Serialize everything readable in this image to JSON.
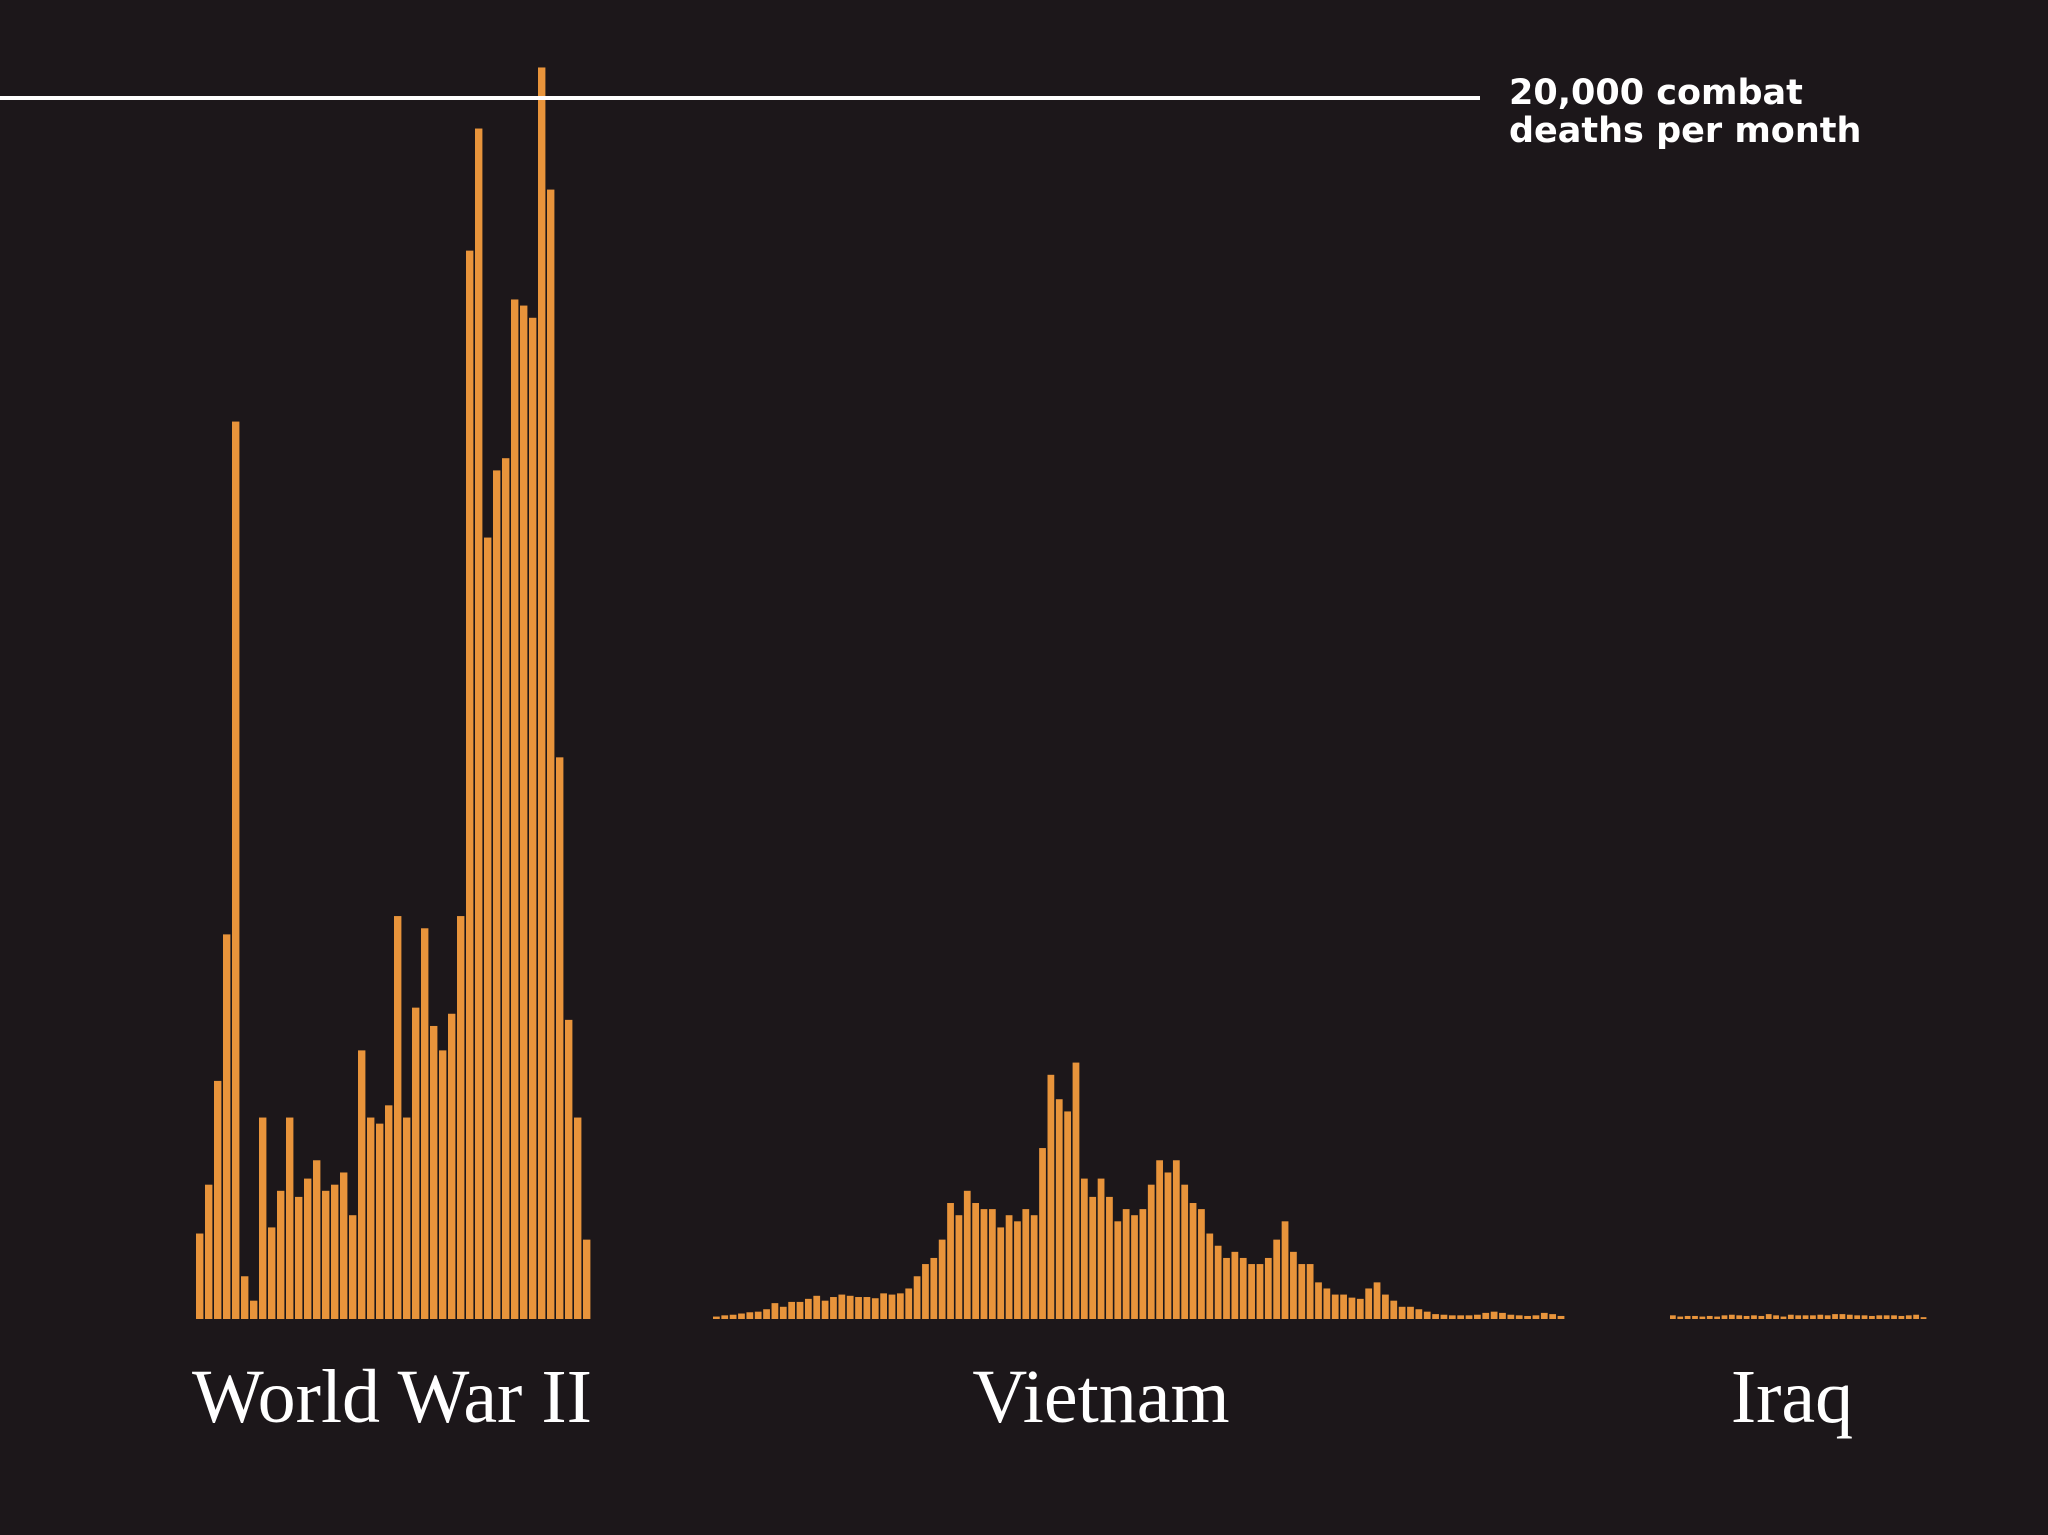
{
  "colors": {
    "background": "#1c171a",
    "bar": "#e8943b",
    "reference_line": "#ffffff",
    "text": "#ffffff"
  },
  "chart_data": {
    "type": "bar",
    "title": "",
    "xlabel": "",
    "ylabel": "",
    "ylim": [
      0,
      21000
    ],
    "grid": false,
    "reference_line": {
      "value": 20000,
      "label_line1": "20,000 combat",
      "label_line2": "deaths per month"
    },
    "groups": [
      {
        "label": "World War II",
        "values": [
          1400,
          2200,
          3900,
          6300,
          14700,
          700,
          300,
          3300,
          1500,
          2100,
          3300,
          2000,
          2300,
          2600,
          2100,
          2200,
          2400,
          1700,
          4400,
          3300,
          3200,
          3500,
          6600,
          3300,
          5100,
          6400,
          4800,
          4400,
          5000,
          6600,
          17500,
          19500,
          12800,
          13900,
          14100,
          16700,
          16600,
          16400,
          20500,
          18500,
          9200,
          4900,
          3300,
          1300
        ]
      },
      {
        "label": "Vietnam",
        "values": [
          40,
          60,
          70,
          90,
          110,
          120,
          160,
          260,
          200,
          280,
          280,
          330,
          380,
          300,
          360,
          400,
          380,
          360,
          360,
          340,
          420,
          400,
          420,
          500,
          700,
          900,
          1000,
          1300,
          1900,
          1700,
          2100,
          1900,
          1800,
          1800,
          1500,
          1700,
          1600,
          1800,
          1700,
          2800,
          4000,
          3600,
          3400,
          4200,
          2300,
          2000,
          2300,
          2000,
          1600,
          1800,
          1700,
          1800,
          2200,
          2600,
          2400,
          2600,
          2200,
          1900,
          1800,
          1400,
          1200,
          1000,
          1100,
          1000,
          900,
          900,
          1000,
          1300,
          1600,
          1100,
          900,
          900,
          600,
          500,
          400,
          400,
          350,
          330,
          500,
          600,
          400,
          300,
          200,
          200,
          160,
          120,
          80,
          70,
          60,
          60,
          60,
          70,
          100,
          120,
          100,
          70,
          60,
          50,
          60,
          100,
          80,
          50
        ]
      },
      {
        "label": "Iraq",
        "values": [
          60,
          40,
          50,
          50,
          40,
          50,
          40,
          60,
          70,
          60,
          50,
          60,
          50,
          80,
          60,
          40,
          70,
          60,
          60,
          60,
          70,
          60,
          80,
          80,
          70,
          60,
          60,
          50,
          60,
          60,
          60,
          50,
          60,
          70,
          30
        ]
      }
    ]
  }
}
